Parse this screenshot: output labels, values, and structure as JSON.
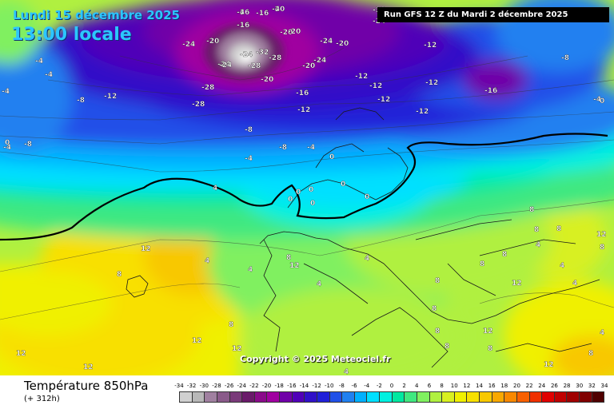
{
  "header": {
    "date": "Lundi 15 décembre 2025",
    "time": "13:00 locale",
    "run_info": "Run GFS 12 Z du Mardi 2 décembre 2025"
  },
  "copyright": "Copyright © 2025 Meteociel.fr",
  "footer": {
    "parameter": "Température 850hPa",
    "forecast_offset": "(+ 312h)"
  },
  "legend": {
    "ticks": [
      "-34",
      "-32",
      "-30",
      "-28",
      "-26",
      "-24",
      "-22",
      "-20",
      "-18",
      "-16",
      "-14",
      "-12",
      "-10",
      "-8",
      "-6",
      "-4",
      "-2",
      "0",
      "2",
      "4",
      "6",
      "8",
      "10",
      "12",
      "14",
      "16",
      "18",
      "20",
      "22",
      "24",
      "26",
      "28",
      "30",
      "32",
      "34"
    ],
    "colors": [
      "#d0d0d0",
      "#b8b8b8",
      "#a080a0",
      "#8a5a8a",
      "#7a3a7a",
      "#6a1a6a",
      "#8a0a8a",
      "#a000a0",
      "#7000a8",
      "#5000b8",
      "#3010c8",
      "#2020d8",
      "#2050e8",
      "#2080f0",
      "#00b0ff",
      "#00e0ff",
      "#00f0e0",
      "#00e8a0",
      "#40e880",
      "#80f060",
      "#b0f040",
      "#d8f020",
      "#f0f000",
      "#f8e000",
      "#f8c800",
      "#f8a800",
      "#f88800",
      "#f86000",
      "#f03000",
      "#e00000",
      "#c00000",
      "#a00000",
      "#800000",
      "#500000"
    ]
  },
  "map": {
    "isotherm_labels": [
      "-16",
      "-20",
      "-20",
      "-24",
      "-20",
      "-16",
      "-20",
      "-24",
      "-20",
      "-24",
      "-24",
      "-32",
      "-28",
      "-24",
      "-28",
      "-20",
      "-24",
      "-28",
      "-28",
      "-16",
      "-20",
      "-24",
      "-16",
      "-12",
      "-12",
      "-12",
      "-12",
      "-12",
      "-12",
      "-16",
      "-4",
      "-8",
      "-12",
      "-8",
      "-4",
      "-8",
      "-12",
      "-12",
      "-4",
      "-8",
      "-4",
      "-8",
      "-4",
      "-4",
      "0",
      "0",
      "0",
      "0",
      "0",
      "0",
      "0",
      "0",
      "4",
      "4",
      "4",
      "8",
      "12",
      "12",
      "8",
      "4",
      "4",
      "8",
      "8",
      "12",
      "4",
      "4",
      "8",
      "8",
      "8",
      "12",
      "12",
      "8",
      "4",
      "4",
      "8",
      "12",
      "12",
      "8",
      "8",
      "8",
      "8",
      "8",
      "12",
      "12",
      "12",
      "8",
      "4",
      "4",
      "-4",
      "-4",
      "0",
      "-4",
      "-4"
    ]
  }
}
